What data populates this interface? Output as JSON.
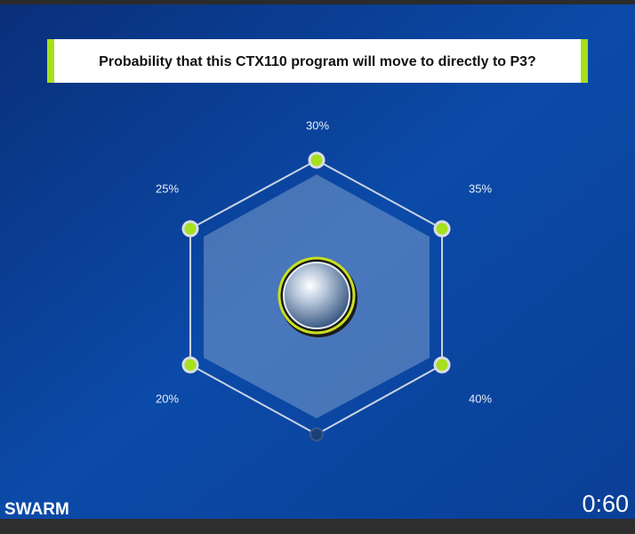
{
  "question": "Probability that this CTX110 program will move to directly to P3?",
  "options": [
    {
      "label": "30%"
    },
    {
      "label": "35%"
    },
    {
      "label": "40%"
    },
    {
      "label": "20%"
    },
    {
      "label": "25%"
    }
  ],
  "footer": {
    "logo": "SWARM",
    "timer": "0:60"
  }
}
